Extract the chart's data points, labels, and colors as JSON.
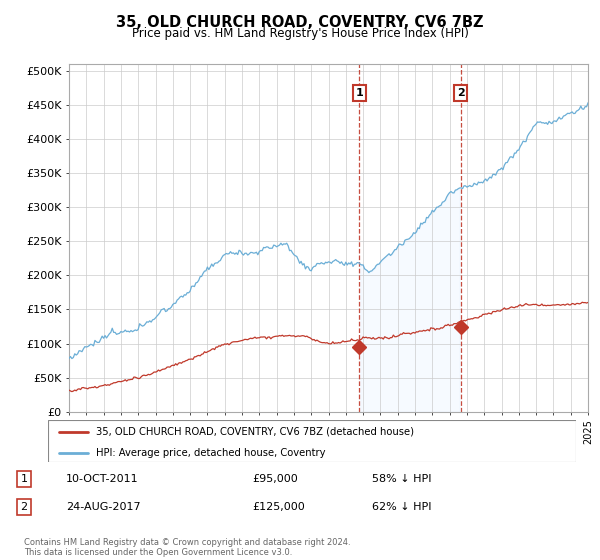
{
  "title": "35, OLD CHURCH ROAD, COVENTRY, CV6 7BZ",
  "subtitle": "Price paid vs. HM Land Registry's House Price Index (HPI)",
  "ylabel_ticks": [
    "£0",
    "£50K",
    "£100K",
    "£150K",
    "£200K",
    "£250K",
    "£300K",
    "£350K",
    "£400K",
    "£450K",
    "£500K"
  ],
  "ytick_values": [
    0,
    50000,
    100000,
    150000,
    200000,
    250000,
    300000,
    350000,
    400000,
    450000,
    500000
  ],
  "hpi_color": "#6baed6",
  "price_color": "#c0392b",
  "hpi_fill_color": "#ddeeff",
  "marker1_year": 2011.78,
  "marker1_value": 95000,
  "marker2_year": 2017.65,
  "marker2_value": 125000,
  "annotation1": {
    "label": "1",
    "date": "10-OCT-2011",
    "price": "£95,000",
    "pct": "58% ↓ HPI"
  },
  "annotation2": {
    "label": "2",
    "date": "24-AUG-2017",
    "price": "£125,000",
    "pct": "62% ↓ HPI"
  },
  "legend_line1": "35, OLD CHURCH ROAD, COVENTRY, CV6 7BZ (detached house)",
  "legend_line2": "HPI: Average price, detached house, Coventry",
  "footer": "Contains HM Land Registry data © Crown copyright and database right 2024.\nThis data is licensed under the Open Government Licence v3.0.",
  "background_color": "#ffffff",
  "plot_bg_color": "#ffffff",
  "grid_color": "#cccccc",
  "xmin": 1995,
  "xmax": 2025
}
